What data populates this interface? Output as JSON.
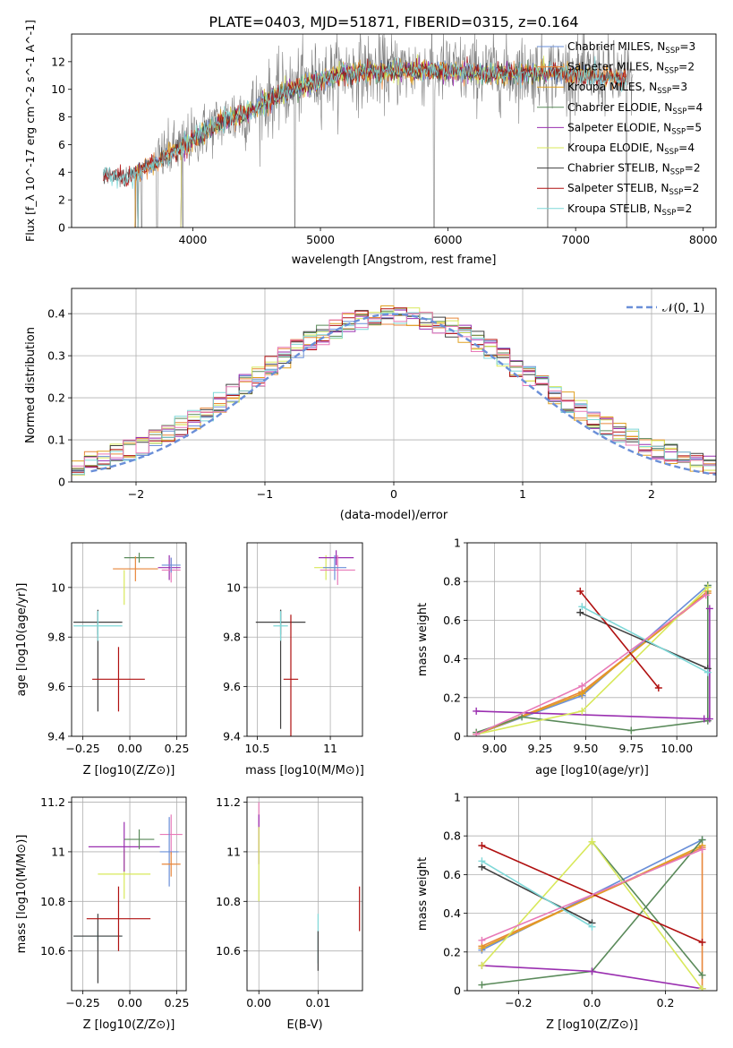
{
  "figure_title": "PLATE=0403, MJD=51871, FIBERID=0315, z=0.164",
  "colors": {
    "chabrier_miles": "#6a8fd8",
    "salpeter_miles": "#e8863a",
    "kroupa_miles": "#e0a020",
    "chabrier_elodie": "#5a8a5a",
    "salpeter_elodie": "#9a2fb0",
    "kroupa_elodie": "#d8e85a",
    "chabrier_stelib": "#404040",
    "salpeter_stelib": "#b01010",
    "kroupa_stelib": "#7fd8d8",
    "data": "#808080",
    "pink": "#e87ab8",
    "gaussian": "#6a8fd8"
  },
  "chart_data": [
    {
      "id": "spectrum",
      "type": "line",
      "title": "PLATE=0403, MJD=51871, FIBERID=0315, z=0.164",
      "xlabel": "wavelength [Angstrom, rest frame]",
      "ylabel": "Flux [f_λ 10^-17 erg cm^-2 s^-1 A^-1]",
      "xlim": [
        3050,
        8100
      ],
      "ylim": [
        0,
        14
      ],
      "xticks": [
        4000,
        5000,
        6000,
        7000,
        8000
      ],
      "yticks": [
        0,
        2,
        4,
        6,
        8,
        10,
        12
      ],
      "grid": false,
      "legend_position": "right",
      "legend": [
        {
          "main": "Chabrier MILES, N",
          "sub": "SSP",
          "tail": "=3",
          "color_key": "chabrier_miles"
        },
        {
          "main": "Salpeter MILES, N",
          "sub": "SSP",
          "tail": "=2",
          "color_key": "salpeter_miles"
        },
        {
          "main": "Kroupa MILES, N",
          "sub": "SSP",
          "tail": "=3",
          "color_key": "kroupa_miles"
        },
        {
          "main": "Chabrier ELODIE, N",
          "sub": "SSP",
          "tail": "=4",
          "color_key": "chabrier_elodie"
        },
        {
          "main": "Salpeter ELODIE, N",
          "sub": "SSP",
          "tail": "=5",
          "color_key": "salpeter_elodie"
        },
        {
          "main": "Kroupa ELODIE, N",
          "sub": "SSP",
          "tail": "=4",
          "color_key": "kroupa_elodie"
        },
        {
          "main": "Chabrier STELIB, N",
          "sub": "SSP",
          "tail": "=2",
          "color_key": "chabrier_stelib"
        },
        {
          "main": "Salpeter STELIB, N",
          "sub": "SSP",
          "tail": "=2",
          "color_key": "salpeter_stelib"
        },
        {
          "main": "Kroupa STELIB, N",
          "sub": "SSP",
          "tail": "=2",
          "color_key": "kroupa_stelib"
        }
      ],
      "continuum_anchors": [
        [
          3300,
          3.9
        ],
        [
          3500,
          3.7
        ],
        [
          3700,
          4.8
        ],
        [
          3900,
          5.8
        ],
        [
          4000,
          6.5
        ],
        [
          4200,
          7.6
        ],
        [
          4400,
          8.3
        ],
        [
          4600,
          9.3
        ],
        [
          4800,
          10.2
        ],
        [
          5000,
          10.8
        ],
        [
          5200,
          11.3
        ],
        [
          5500,
          11.4
        ],
        [
          5800,
          11.5
        ],
        [
          6200,
          11.3
        ],
        [
          6500,
          11.2
        ],
        [
          6800,
          11.3
        ],
        [
          7000,
          11.1
        ],
        [
          7300,
          10.9
        ],
        [
          7450,
          10.8
        ]
      ],
      "noise_amplitude": 1.3,
      "absorption_lines": [
        3550,
        3600,
        3720,
        3920,
        4800,
        5890,
        6780,
        7400
      ],
      "emission_line": [
        6560,
        12.8
      ]
    },
    {
      "id": "residuals",
      "type": "histogram",
      "xlabel": "(data-model)/error",
      "ylabel": "Normed distribution",
      "xlim": [
        -2.5,
        2.5
      ],
      "ylim": [
        0,
        0.46
      ],
      "xticks": [
        -2,
        -1,
        0,
        1,
        2
      ],
      "yticks": [
        0.0,
        0.1,
        0.2,
        0.3,
        0.4
      ],
      "grid": true,
      "legend_position": "top-right",
      "gaussian_label": "𝒩(0, 1)",
      "bin_width": 0.1,
      "bin_start": -2.5,
      "series_color_keys": [
        "chabrier_miles",
        "salpeter_miles",
        "kroupa_miles",
        "chabrier_elodie",
        "salpeter_elodie",
        "kroupa_elodie",
        "chabrier_stelib",
        "salpeter_stelib",
        "kroupa_stelib",
        "pink"
      ]
    },
    {
      "id": "age_vs_z",
      "type": "errorbar",
      "xlabel": "Z [log10(Z/Z⊙)]",
      "ylabel": "age [log10(age/yr)]",
      "xlim": [
        -0.31,
        0.3
      ],
      "ylim": [
        9.4,
        10.18
      ],
      "xticks": [
        -0.25,
        0.0,
        0.25
      ],
      "xticklabels": [
        "−0.25",
        "0.00",
        "0.25"
      ],
      "yticks": [
        9.4,
        9.6,
        9.8,
        10.0
      ],
      "grid": true,
      "points": [
        {
          "x": -0.17,
          "y": 9.86,
          "xerr": 0.13,
          "yerr": 0.05,
          "color_key": "chabrier_stelib"
        },
        {
          "x": -0.17,
          "y": 9.7,
          "xerr": 0.0,
          "yerr": 0.2,
          "color_key": "chabrier_stelib"
        },
        {
          "x": -0.17,
          "y": 9.845,
          "xerr": 0.13,
          "yerr": 0.06,
          "color_key": "kroupa_stelib"
        },
        {
          "x": -0.06,
          "y": 9.63,
          "xerr": 0.14,
          "yerr": 0.13,
          "color_key": "salpeter_stelib"
        },
        {
          "x": 0.05,
          "y": 10.12,
          "xerr": 0.08,
          "yerr": 0.02,
          "color_key": "chabrier_elodie"
        },
        {
          "x": 0.03,
          "y": 10.075,
          "xerr": 0.12,
          "yerr": 0.05,
          "color_key": "salpeter_miles"
        },
        {
          "x": -0.03,
          "y": 10.0,
          "xerr": 0.0,
          "yerr": 0.07,
          "color_key": "kroupa_elodie"
        },
        {
          "x": 0.21,
          "y": 10.08,
          "xerr": 0.06,
          "yerr": 0.05,
          "color_key": "salpeter_elodie"
        },
        {
          "x": 0.22,
          "y": 10.07,
          "xerr": 0.05,
          "yerr": 0.05,
          "color_key": "pink"
        },
        {
          "x": 0.22,
          "y": 10.09,
          "xerr": 0.05,
          "yerr": 0.03,
          "color_key": "chabrier_miles"
        }
      ]
    },
    {
      "id": "age_vs_mass",
      "type": "errorbar",
      "xlabel": "mass [log10(M/M⊙)]",
      "xlim": [
        10.43,
        11.22
      ],
      "ylim": [
        9.4,
        10.18
      ],
      "xticks": [
        10.5,
        11.0
      ],
      "yticks": [
        9.4,
        9.6,
        9.8,
        10.0
      ],
      "grid": true,
      "points": [
        {
          "x": 10.66,
          "y": 9.86,
          "xerr": 0.17,
          "yerr": 0.05,
          "color_key": "chabrier_stelib"
        },
        {
          "x": 10.66,
          "y": 9.67,
          "xerr": 0.0,
          "yerr": 0.24,
          "color_key": "chabrier_stelib"
        },
        {
          "x": 10.66,
          "y": 9.845,
          "xerr": 0.05,
          "yerr": 0.06,
          "color_key": "kroupa_stelib"
        },
        {
          "x": 10.73,
          "y": 9.63,
          "xerr": 0.05,
          "yerr": 0.26,
          "color_key": "salpeter_stelib"
        },
        {
          "x": 10.97,
          "y": 10.08,
          "xerr": 0.08,
          "yerr": 0.05,
          "color_key": "kroupa_elodie"
        },
        {
          "x": 11.04,
          "y": 10.12,
          "xerr": 0.12,
          "yerr": 0.03,
          "color_key": "salpeter_elodie"
        },
        {
          "x": 11.05,
          "y": 10.07,
          "xerr": 0.12,
          "yerr": 0.06,
          "color_key": "pink"
        },
        {
          "x": 11.03,
          "y": 10.08,
          "xerr": 0.08,
          "yerr": 0.05,
          "color_key": "chabrier_miles"
        }
      ]
    },
    {
      "id": "mass_weight_vs_age",
      "type": "line",
      "xlabel": "age [log10(age/yr)]",
      "ylabel": "mass weight",
      "xlim": [
        8.85,
        10.22
      ],
      "ylim": [
        0.0,
        1.0
      ],
      "xticks": [
        9.0,
        9.25,
        9.5,
        9.75,
        10.0
      ],
      "xticklabels": [
        "9.00",
        "9.25",
        "9.50",
        "9.75",
        "10.00"
      ],
      "yticks": [
        0.0,
        0.2,
        0.4,
        0.6,
        0.8,
        1.0
      ],
      "grid": true,
      "series": [
        {
          "color_key": "chabrier_miles",
          "x": [
            8.9,
            9.48,
            10.17
          ],
          "y": [
            0.01,
            0.21,
            0.78
          ]
        },
        {
          "color_key": "salpeter_miles",
          "x": [
            8.9,
            9.48,
            10.17
          ],
          "y": [
            0.01,
            0.23,
            0.74
          ]
        },
        {
          "color_key": "kroupa_miles",
          "x": [
            8.9,
            9.48,
            10.17
          ],
          "y": [
            0.01,
            0.22,
            0.75
          ]
        },
        {
          "color_key": "chabrier_elodie",
          "x": [
            8.9,
            9.15,
            9.75,
            10.17,
            10.17
          ],
          "y": [
            0.02,
            0.1,
            0.03,
            0.08,
            0.78
          ]
        },
        {
          "color_key": "salpeter_elodie",
          "x": [
            8.9,
            10.15,
            10.18,
            10.18
          ],
          "y": [
            0.13,
            0.09,
            0.09,
            0.66
          ]
        },
        {
          "color_key": "kroupa_elodie",
          "x": [
            8.9,
            9.48,
            10.17
          ],
          "y": [
            0.01,
            0.13,
            0.77
          ]
        },
        {
          "color_key": "chabrier_stelib",
          "x": [
            9.47,
            10.17
          ],
          "y": [
            0.64,
            0.35
          ]
        },
        {
          "color_key": "salpeter_stelib",
          "x": [
            9.47,
            9.9
          ],
          "y": [
            0.75,
            0.25
          ]
        },
        {
          "color_key": "kroupa_stelib",
          "x": [
            9.48,
            10.17
          ],
          "y": [
            0.67,
            0.33
          ]
        },
        {
          "color_key": "pink",
          "x": [
            8.9,
            9.48,
            10.16
          ],
          "y": [
            0.01,
            0.26,
            0.73
          ]
        }
      ]
    },
    {
      "id": "mass_vs_z",
      "type": "errorbar",
      "xlabel": "Z [log10(Z/Z⊙)]",
      "ylabel": "mass [log10(M/M⊙)]",
      "xlim": [
        -0.31,
        0.3
      ],
      "ylim": [
        10.44,
        11.22
      ],
      "xticks": [
        -0.25,
        0.0,
        0.25
      ],
      "xticklabels": [
        "−0.25",
        "0.00",
        "0.25"
      ],
      "yticks": [
        10.6,
        10.8,
        11.0,
        11.2
      ],
      "grid": true,
      "points": [
        {
          "x": -0.17,
          "y": 10.66,
          "xerr": 0.13,
          "yerr": 0.02,
          "color_key": "kroupa_stelib"
        },
        {
          "x": -0.17,
          "y": 10.66,
          "xerr": 0.13,
          "yerr": 0.0,
          "color_key": "chabrier_stelib"
        },
        {
          "x": -0.17,
          "y": 10.61,
          "xerr": 0.0,
          "yerr": 0.14,
          "color_key": "chabrier_stelib"
        },
        {
          "x": -0.06,
          "y": 10.73,
          "xerr": 0.17,
          "yerr": 0.13,
          "color_key": "salpeter_stelib"
        },
        {
          "x": -0.03,
          "y": 10.91,
          "xerr": 0.14,
          "yerr": 0.1,
          "color_key": "kroupa_elodie"
        },
        {
          "x": -0.03,
          "y": 11.02,
          "xerr": 0.19,
          "yerr": 0.1,
          "color_key": "salpeter_elodie"
        },
        {
          "x": 0.05,
          "y": 11.05,
          "xerr": 0.08,
          "yerr": 0.04,
          "color_key": "chabrier_elodie"
        },
        {
          "x": 0.22,
          "y": 11.07,
          "xerr": 0.06,
          "yerr": 0.08,
          "color_key": "pink"
        },
        {
          "x": 0.21,
          "y": 11.0,
          "xerr": 0.05,
          "yerr": 0.14,
          "color_key": "chabrier_miles"
        },
        {
          "x": 0.22,
          "y": 10.95,
          "xerr": 0.05,
          "yerr": 0.05,
          "color_key": "salpeter_miles"
        }
      ]
    },
    {
      "id": "mass_vs_ebv",
      "type": "errorbar",
      "xlabel": "E(B-V)",
      "xlim": [
        -0.002,
        0.0175
      ],
      "ylim": [
        10.44,
        11.22
      ],
      "xticks": [
        0.0,
        0.01
      ],
      "xticklabels": [
        "0.00",
        "0.01"
      ],
      "yticks": [
        10.6,
        10.8,
        11.0,
        11.2
      ],
      "grid": true,
      "points": [
        {
          "x": 0.0,
          "y": 11.1,
          "xerr": 0.0,
          "yerr": 0.1,
          "color_key": "pink"
        },
        {
          "x": 0.0,
          "y": 11.05,
          "xerr": 0.0,
          "yerr": 0.1,
          "color_key": "salpeter_elodie"
        },
        {
          "x": 0.0,
          "y": 10.95,
          "xerr": 0.0,
          "yerr": 0.15,
          "color_key": "kroupa_elodie"
        },
        {
          "x": 0.01,
          "y": 10.65,
          "xerr": 0.0,
          "yerr": 0.1,
          "color_key": "kroupa_stelib"
        },
        {
          "x": 0.01,
          "y": 10.6,
          "xerr": 0.0,
          "yerr": 0.08,
          "color_key": "chabrier_stelib"
        },
        {
          "x": 0.017,
          "y": 10.77,
          "xerr": 0.0,
          "yerr": 0.09,
          "color_key": "salpeter_stelib"
        }
      ]
    },
    {
      "id": "mass_weight_vs_z",
      "type": "line",
      "xlabel": "Z [log10(Z/Z⊙)]",
      "ylabel": "mass weight",
      "xlim": [
        -0.34,
        0.34
      ],
      "ylim": [
        0.0,
        1.0
      ],
      "xticks": [
        -0.2,
        0.0,
        0.2
      ],
      "xticklabels": [
        "−0.2",
        "0.0",
        "0.2"
      ],
      "yticks": [
        0.0,
        0.2,
        0.4,
        0.6,
        0.8,
        1.0
      ],
      "grid": true,
      "series": [
        {
          "color_key": "chabrier_miles",
          "x": [
            -0.3,
            0.3
          ],
          "y": [
            0.21,
            0.78
          ]
        },
        {
          "color_key": "salpeter_miles",
          "x": [
            -0.3,
            0.3,
            0.3
          ],
          "y": [
            0.23,
            0.74,
            0.01
          ]
        },
        {
          "color_key": "kroupa_miles",
          "x": [
            -0.3,
            0.3
          ],
          "y": [
            0.22,
            0.75
          ]
        },
        {
          "color_key": "chabrier_elodie",
          "x": [
            -0.3,
            0.0,
            0.3
          ],
          "y": [
            0.03,
            0.1,
            0.78
          ]
        },
        {
          "color_key": "chabrier_elodie",
          "x": [
            0.0,
            0.3
          ],
          "y": [
            0.77,
            0.08
          ]
        },
        {
          "color_key": "salpeter_elodie",
          "x": [
            -0.3,
            0.0,
            0.3
          ],
          "y": [
            0.13,
            0.1,
            0.01
          ]
        },
        {
          "color_key": "kroupa_elodie",
          "x": [
            -0.3,
            0.0,
            0.3
          ],
          "y": [
            0.13,
            0.77,
            0.01
          ]
        },
        {
          "color_key": "chabrier_stelib",
          "x": [
            -0.3,
            0.0
          ],
          "y": [
            0.64,
            0.35
          ]
        },
        {
          "color_key": "salpeter_stelib",
          "x": [
            -0.3,
            0.3
          ],
          "y": [
            0.75,
            0.25
          ]
        },
        {
          "color_key": "kroupa_stelib",
          "x": [
            -0.3,
            0.0
          ],
          "y": [
            0.67,
            0.33
          ]
        },
        {
          "color_key": "pink",
          "x": [
            -0.3,
            0.3
          ],
          "y": [
            0.26,
            0.73
          ]
        }
      ]
    }
  ]
}
